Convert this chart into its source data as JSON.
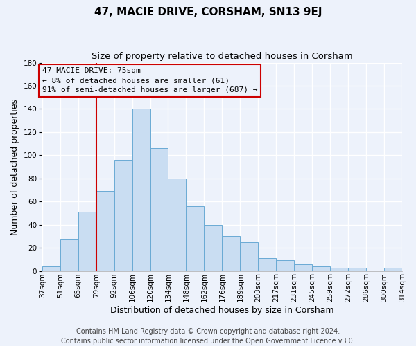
{
  "title": "47, MACIE DRIVE, CORSHAM, SN13 9EJ",
  "subtitle": "Size of property relative to detached houses in Corsham",
  "xlabel": "Distribution of detached houses by size in Corsham",
  "ylabel": "Number of detached properties",
  "categories": [
    "37sqm",
    "51sqm",
    "65sqm",
    "79sqm",
    "92sqm",
    "106sqm",
    "120sqm",
    "134sqm",
    "148sqm",
    "162sqm",
    "176sqm",
    "189sqm",
    "203sqm",
    "217sqm",
    "231sqm",
    "245sqm",
    "259sqm",
    "272sqm",
    "286sqm",
    "300sqm",
    "314sqm"
  ],
  "values": [
    4,
    27,
    51,
    69,
    96,
    140,
    106,
    80,
    56,
    40,
    30,
    25,
    11,
    9,
    6,
    4,
    3,
    3,
    0,
    3
  ],
  "bar_color": "#c9ddf2",
  "bar_edge_color": "#6aaad4",
  "ylim": [
    0,
    180
  ],
  "yticks": [
    0,
    20,
    40,
    60,
    80,
    100,
    120,
    140,
    160,
    180
  ],
  "vline_color": "#cc0000",
  "annotation_title": "47 MACIE DRIVE: 75sqm",
  "annotation_line1": "← 8% of detached houses are smaller (61)",
  "annotation_line2": "91% of semi-detached houses are larger (687) →",
  "annotation_box_color": "#cc0000",
  "footer_line1": "Contains HM Land Registry data © Crown copyright and database right 2024.",
  "footer_line2": "Contains public sector information licensed under the Open Government Licence v3.0.",
  "background_color": "#edf2fb",
  "grid_color": "#ffffff",
  "title_fontsize": 11,
  "subtitle_fontsize": 9.5,
  "axis_label_fontsize": 9,
  "tick_fontsize": 7.5,
  "annotation_fontsize": 8,
  "footer_fontsize": 7
}
